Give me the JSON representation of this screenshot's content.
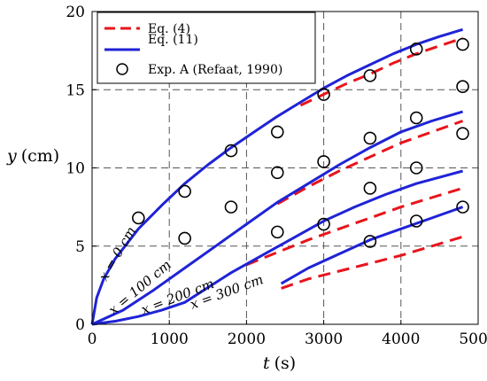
{
  "chart_data": {
    "type": "line",
    "xlabel_var": "t",
    "xlabel_unit": "(s)",
    "ylabel_var": "y",
    "ylabel_unit": "(cm)",
    "xlim": [
      0,
      5000
    ],
    "ylim": [
      0,
      20
    ],
    "xticks": [
      0,
      1000,
      2000,
      3000,
      4000,
      5000
    ],
    "yticks": [
      0,
      5,
      10,
      15,
      20
    ],
    "grid": true,
    "legend_position": "top-left",
    "legend": {
      "eq4": "Eq. (4)",
      "eq11": "Eq. (11)",
      "exp": "Exp. A (Refaat, 1990)"
    },
    "colors": {
      "eq4": "#e8141b",
      "eq11": "#1f23d6",
      "exp": "#000000"
    },
    "series": [
      {
        "x_position_label": "x = 0 cm",
        "eq11": [
          [
            0,
            0
          ],
          [
            60,
            1.7
          ],
          [
            150,
            2.9
          ],
          [
            300,
            4.2
          ],
          [
            600,
            6.1
          ],
          [
            900,
            7.6
          ],
          [
            1200,
            9.0
          ],
          [
            1500,
            10.2
          ],
          [
            1800,
            11.3
          ],
          [
            2100,
            12.3
          ],
          [
            2400,
            13.3
          ],
          [
            2700,
            14.2
          ],
          [
            3000,
            15.1
          ],
          [
            3300,
            15.9
          ],
          [
            3600,
            16.6
          ],
          [
            3900,
            17.3
          ],
          [
            4200,
            17.9
          ],
          [
            4500,
            18.4
          ],
          [
            4800,
            18.85
          ]
        ],
        "eq4": [
          [
            2700,
            14.0
          ],
          [
            3000,
            14.7
          ],
          [
            3300,
            15.4
          ],
          [
            3600,
            16.0
          ],
          [
            3900,
            16.7
          ],
          [
            4200,
            17.3
          ],
          [
            4500,
            17.8
          ],
          [
            4800,
            18.3
          ]
        ],
        "exp": [
          [
            600,
            6.8
          ],
          [
            1200,
            8.5
          ],
          [
            1800,
            11.1
          ],
          [
            2400,
            12.3
          ],
          [
            3000,
            14.7
          ],
          [
            3600,
            15.9
          ],
          [
            4200,
            17.6
          ],
          [
            4800,
            17.9
          ]
        ]
      },
      {
        "x_position_label": "x = 100 cm",
        "eq11": [
          [
            0,
            0
          ],
          [
            400,
            0.9
          ],
          [
            800,
            2.2
          ],
          [
            1200,
            3.6
          ],
          [
            1600,
            5.0
          ],
          [
            2000,
            6.4
          ],
          [
            2400,
            7.8
          ],
          [
            2800,
            9.0
          ],
          [
            3200,
            10.2
          ],
          [
            3600,
            11.3
          ],
          [
            4000,
            12.3
          ],
          [
            4400,
            13.0
          ],
          [
            4800,
            13.6
          ]
        ],
        "eq4": [
          [
            2400,
            7.7
          ],
          [
            2800,
            8.8
          ],
          [
            3200,
            9.8
          ],
          [
            3600,
            10.7
          ],
          [
            4000,
            11.6
          ],
          [
            4400,
            12.3
          ],
          [
            4800,
            13.0
          ]
        ],
        "exp": [
          [
            1200,
            5.5
          ],
          [
            1800,
            7.5
          ],
          [
            2400,
            9.7
          ],
          [
            3000,
            10.4
          ],
          [
            3600,
            11.9
          ],
          [
            4200,
            13.2
          ],
          [
            4800,
            12.2
          ]
        ]
      },
      {
        "x_position_label": "x = 200 cm",
        "eq11": [
          [
            0,
            0
          ],
          [
            300,
            0.2
          ],
          [
            600,
            0.5
          ],
          [
            900,
            0.9
          ],
          [
            1200,
            1.4
          ],
          [
            1800,
            3.3
          ],
          [
            2200,
            4.4
          ],
          [
            2600,
            5.5
          ],
          [
            3000,
            6.6
          ],
          [
            3400,
            7.5
          ],
          [
            3800,
            8.3
          ],
          [
            4200,
            9.0
          ],
          [
            4800,
            9.8
          ]
        ],
        "eq4": [
          [
            2000,
            3.8
          ],
          [
            2400,
            4.6
          ],
          [
            2800,
            5.4
          ],
          [
            3200,
            6.1
          ],
          [
            3600,
            6.8
          ],
          [
            4000,
            7.5
          ],
          [
            4400,
            8.1
          ],
          [
            4800,
            8.7
          ]
        ],
        "exp": [
          [
            2400,
            5.9
          ],
          [
            3000,
            6.4
          ],
          [
            3600,
            8.7
          ],
          [
            4200,
            10.0
          ],
          [
            4800,
            15.2
          ]
        ]
      },
      {
        "x_position_label": "x = 300 cm",
        "eq11": [
          [
            2450,
            2.6
          ],
          [
            2800,
            3.6
          ],
          [
            3200,
            4.5
          ],
          [
            3600,
            5.4
          ],
          [
            4000,
            6.1
          ],
          [
            4400,
            6.8
          ],
          [
            4800,
            7.5
          ]
        ],
        "eq4": [
          [
            2450,
            2.3
          ],
          [
            2800,
            2.9
          ],
          [
            3200,
            3.4
          ],
          [
            3600,
            3.9
          ],
          [
            4000,
            4.4
          ],
          [
            4400,
            5.0
          ],
          [
            4800,
            5.6
          ]
        ],
        "exp": [
          [
            3600,
            5.3
          ],
          [
            4200,
            6.6
          ],
          [
            4800,
            7.5
          ]
        ]
      }
    ]
  }
}
